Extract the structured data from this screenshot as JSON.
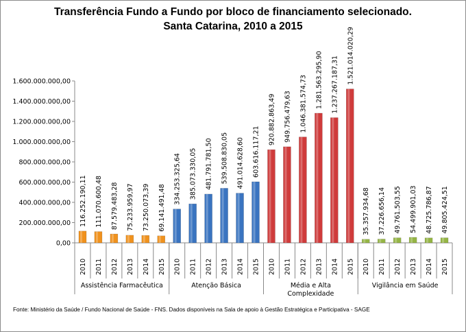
{
  "chart_data": {
    "type": "bar",
    "title": "Transferência Fundo a Fundo por bloco de financiamento selecionado.",
    "subtitle": "Santa Catarina, 2010 a 2015",
    "ylim": [
      0,
      1600000000
    ],
    "yticks": [
      "0,00",
      "200.000.000,00",
      "400.000.000,00",
      "600.000.000,00",
      "800.000.000,00",
      "1.000.000.000,00",
      "1.200.000.000,00",
      "1.400.000.000,00",
      "1.600.000.000,00"
    ],
    "grid": false,
    "groups": [
      {
        "name": "Assistência Farmacêutica",
        "color": "#f0921e",
        "years": [
          "2010",
          "2011",
          "2012",
          "2013",
          "2014",
          "2015"
        ],
        "values": [
          116252190.11,
          111070600.48,
          87579483.28,
          75233959.97,
          73250073.39,
          69141491.48
        ],
        "labels": [
          "116.252.190,11",
          "111.070.600,48",
          "87.579.483,28",
          "75.233.959,97",
          "73.250.073,39",
          "69.141.491,48"
        ]
      },
      {
        "name": "Atenção Básica",
        "color": "#3a74c0",
        "years": [
          "2010",
          "2011",
          "2012",
          "2013",
          "2014",
          "2015"
        ],
        "values": [
          334253325.64,
          385073330.05,
          481791781.5,
          539508830.05,
          491014628.6,
          603616117.21
        ],
        "labels": [
          "334.253.325,64",
          "385.073.330,05",
          "481.791.781,50",
          "539.508.830,05",
          "491.014.628,60",
          "603.616.117,21"
        ]
      },
      {
        "name": "Média e Alta Complexidade",
        "color": "#cf3b3b",
        "years": [
          "2010",
          "2011",
          "2012",
          "2013",
          "2014",
          "2015"
        ],
        "values": [
          920882863.49,
          949756479.63,
          1046381574.73,
          1281563295.9,
          1237267187.31,
          1521014020.29
        ],
        "labels": [
          "920.882.863,49",
          "949.756.479,63",
          "1.046.381.574,73",
          "1.281.563.295,90",
          "1.237.267.187,31",
          "1.521.014.020,29"
        ]
      },
      {
        "name": "Vigilância em Saúde",
        "color": "#95b545",
        "years": [
          "2010",
          "2011",
          "2012",
          "2013",
          "2014",
          "2015"
        ],
        "values": [
          35357934.68,
          37226656.14,
          49761503.55,
          54499901.03,
          48725786.87,
          49805424.51
        ],
        "labels": [
          "35.357.934,68",
          "37.226.656,14",
          "49.761.503,55",
          "54.499.901,03",
          "48.725.786,87",
          "49.805.424,51"
        ]
      }
    ]
  },
  "footer": "Fonte: Ministério da Saúde / Fundo Nacional de Saúde - FNS. Dados disponíveis na Sala de apoio à Gestão Estratégica e Participativa - SAGE"
}
